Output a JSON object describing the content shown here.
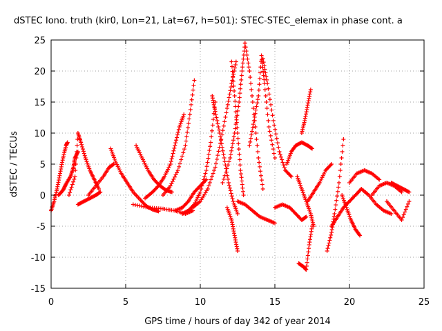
{
  "chart_data": {
    "type": "scatter",
    "title": "dSTEC Iono. truth (kir0, Lon=21, Lat=67, h=501): STEC-STEC_elemax in phase cont. a",
    "xlabel": "GPS time / hours of day 342 of year 2014",
    "ylabel": "dSTEC  / TECUs",
    "xlim": [
      0,
      25
    ],
    "ylim": [
      -15,
      25
    ],
    "x_ticks": [
      0,
      5,
      10,
      15,
      20,
      25
    ],
    "y_ticks": [
      -15,
      -10,
      -5,
      0,
      5,
      10,
      15,
      20,
      25
    ],
    "x_tick_labels": [
      "0",
      "5",
      "10",
      "15",
      "20",
      "25"
    ],
    "y_tick_labels": [
      "-15",
      "-10",
      "-5",
      "0",
      "5",
      "10",
      "15",
      "20",
      "25"
    ],
    "grid": true,
    "marker": "+",
    "color": "#ff0000",
    "series": [
      {
        "x": [
          0.0,
          0.2,
          0.4,
          0.6,
          0.8,
          1.0,
          1.1
        ],
        "values": [
          -2.5,
          -1.0,
          1.0,
          3.5,
          6.0,
          8.0,
          8.5
        ]
      },
      {
        "x": [
          0.5,
          0.8,
          1.0,
          1.3,
          1.5,
          1.6,
          1.8
        ],
        "values": [
          0.0,
          0.8,
          1.8,
          3.0,
          4.5,
          6.0,
          7.0
        ]
      },
      {
        "x": [
          1.2,
          1.6,
          1.8,
          2.0,
          2.3,
          2.6,
          2.9,
          3.2
        ],
        "values": [
          0.0,
          3.0,
          10.0,
          8.5,
          6.0,
          4.0,
          2.5,
          1.0
        ]
      },
      {
        "x": [
          1.8,
          2.2,
          2.6,
          3.0,
          3.3
        ],
        "values": [
          -1.5,
          -1.0,
          -0.5,
          0.0,
          0.5
        ]
      },
      {
        "x": [
          2.5,
          3.0,
          3.5,
          3.9,
          4.2
        ],
        "values": [
          0.0,
          1.5,
          3.0,
          4.5,
          5.0
        ]
      },
      {
        "x": [
          4.0,
          4.3,
          4.7,
          5.1,
          5.5,
          6.0,
          6.4,
          6.8,
          7.2
        ],
        "values": [
          7.5,
          5.5,
          3.5,
          2.0,
          0.5,
          -0.8,
          -1.8,
          -2.3,
          -2.6
        ]
      },
      {
        "x": [
          5.7,
          6.1,
          6.5,
          6.9,
          7.3,
          7.7,
          8.1
        ],
        "values": [
          8.0,
          6.0,
          4.0,
          2.5,
          1.5,
          0.8,
          0.5
        ]
      },
      {
        "x": [
          6.3,
          6.8,
          7.2,
          7.6,
          8.0,
          8.3,
          8.6,
          8.9
        ],
        "values": [
          -0.5,
          0.5,
          1.5,
          3.0,
          5.0,
          8.0,
          11.0,
          13.0
        ]
      },
      {
        "x": [
          5.5,
          6.5,
          7.5,
          8.3,
          9.0,
          9.5
        ],
        "values": [
          -1.5,
          -2.0,
          -2.2,
          -2.5,
          -3.0,
          -2.5
        ]
      },
      {
        "x": [
          7.5,
          8.0,
          8.5,
          9.0,
          9.3,
          9.6
        ],
        "values": [
          0.0,
          1.5,
          4.0,
          8.0,
          13.0,
          18.5
        ]
      },
      {
        "x": [
          8.3,
          8.8,
          9.2,
          9.6,
          10.0,
          10.4
        ],
        "values": [
          -2.5,
          -2.0,
          -1.0,
          0.5,
          1.5,
          2.5
        ]
      },
      {
        "x": [
          8.8,
          9.2,
          9.6,
          10.0,
          10.4,
          10.7,
          11.0
        ],
        "values": [
          -3.0,
          -2.5,
          -1.5,
          0.5,
          4.0,
          8.5,
          15.0
        ]
      },
      {
        "x": [
          9.5,
          10.0,
          10.5,
          11.0,
          11.4,
          11.8,
          12.1,
          12.4
        ],
        "values": [
          -2.0,
          -1.0,
          1.0,
          4.5,
          9.0,
          14.0,
          18.0,
          21.5
        ]
      },
      {
        "x": [
          10.8,
          11.0,
          11.3,
          11.6,
          11.9,
          12.2,
          12.5
        ],
        "values": [
          16.0,
          13.5,
          10.0,
          6.0,
          2.0,
          -1.0,
          -3.0
        ]
      },
      {
        "x": [
          11.5,
          12.0,
          12.3,
          12.6,
          12.8,
          13.0
        ],
        "values": [
          2.0,
          6.0,
          10.0,
          15.0,
          20.0,
          24.5
        ]
      },
      {
        "x": [
          12.1,
          12.3,
          12.5,
          12.7,
          12.9
        ],
        "values": [
          21.5,
          16.0,
          10.0,
          4.0,
          0.0
        ]
      },
      {
        "x": [
          11.8,
          12.1,
          12.3,
          12.5
        ],
        "values": [
          -2.0,
          -4.0,
          -6.5,
          -9.0
        ]
      },
      {
        "x": [
          13.0,
          13.3,
          13.6,
          13.9,
          14.2
        ],
        "values": [
          24.5,
          20.0,
          13.0,
          6.0,
          1.0
        ]
      },
      {
        "x": [
          13.3,
          13.6,
          13.9,
          14.1,
          14.3,
          14.6,
          15.0
        ],
        "values": [
          8.0,
          12.0,
          16.0,
          22.5,
          18.0,
          11.0,
          6.0
        ]
      },
      {
        "x": [
          12.5,
          13.0,
          13.5,
          14.0,
          14.5,
          15.0
        ],
        "values": [
          -1.0,
          -1.5,
          -2.5,
          -3.5,
          -4.0,
          -4.5
        ]
      },
      {
        "x": [
          14.2,
          14.5,
          14.9,
          15.3,
          15.7,
          16.1
        ],
        "values": [
          22.0,
          18.0,
          12.0,
          7.0,
          4.0,
          3.0
        ]
      },
      {
        "x": [
          15.0,
          15.5,
          16.0,
          16.4,
          16.8,
          17.1
        ],
        "values": [
          -2.0,
          -1.5,
          -2.0,
          -3.0,
          -4.0,
          -3.5
        ]
      },
      {
        "x": [
          15.8,
          16.1,
          16.4,
          16.8,
          17.2,
          17.5
        ],
        "values": [
          5.0,
          7.0,
          8.0,
          8.5,
          8.0,
          7.5
        ]
      },
      {
        "x": [
          16.8,
          17.0,
          17.2,
          17.4
        ],
        "values": [
          10.0,
          12.0,
          14.5,
          17.0
        ]
      },
      {
        "x": [
          16.5,
          16.8,
          17.1,
          17.4,
          17.6
        ],
        "values": [
          3.0,
          1.0,
          -1.0,
          -3.0,
          -5.0
        ]
      },
      {
        "x": [
          16.6,
          16.9,
          17.1,
          17.3,
          17.5
        ],
        "values": [
          -11.0,
          -11.5,
          -12.0,
          -8.0,
          -5.0
        ]
      },
      {
        "x": [
          17.2,
          17.6,
          18.0,
          18.4,
          18.8
        ],
        "values": [
          -1.0,
          0.5,
          2.0,
          4.0,
          5.0
        ]
      },
      {
        "x": [
          18.5,
          18.8,
          19.0,
          19.3,
          19.6
        ],
        "values": [
          -9.0,
          -6.0,
          -3.0,
          2.0,
          9.0
        ]
      },
      {
        "x": [
          18.8,
          19.2,
          19.6,
          20.0,
          20.4,
          20.8
        ],
        "values": [
          -5.0,
          -3.5,
          -2.0,
          -1.0,
          0.0,
          1.0
        ]
      },
      {
        "x": [
          19.5,
          19.8,
          20.1,
          20.4,
          20.7
        ],
        "values": [
          0.0,
          -2.0,
          -4.0,
          -5.5,
          -6.5
        ]
      },
      {
        "x": [
          20.0,
          20.5,
          21.0,
          21.5,
          22.0
        ],
        "values": [
          2.0,
          3.5,
          4.0,
          3.5,
          2.5
        ]
      },
      {
        "x": [
          20.8,
          21.3,
          21.8,
          22.3,
          22.8
        ],
        "values": [
          1.0,
          0.0,
          -1.5,
          -2.5,
          -3.0
        ]
      },
      {
        "x": [
          21.5,
          22.0,
          22.5,
          23.0,
          23.5
        ],
        "values": [
          0.0,
          1.5,
          2.0,
          1.5,
          0.5
        ]
      },
      {
        "x": [
          22.5,
          23.0,
          23.5,
          24.0
        ],
        "values": [
          -1.0,
          -2.5,
          -4.0,
          -1.0
        ]
      },
      {
        "x": [
          22.8,
          23.2,
          23.6,
          24.0
        ],
        "values": [
          2.0,
          1.5,
          1.0,
          0.5
        ]
      }
    ]
  }
}
